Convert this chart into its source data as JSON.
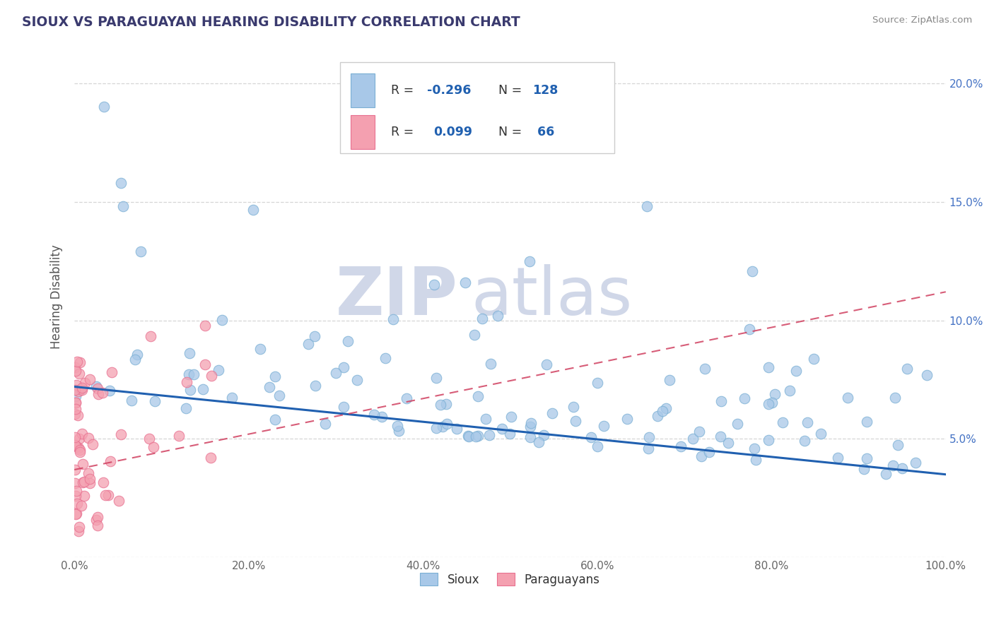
{
  "title": "SIOUX VS PARAGUAYAN HEARING DISABILITY CORRELATION CHART",
  "source_text": "Source: ZipAtlas.com",
  "ylabel": "Hearing Disability",
  "legend_r": [
    -0.296,
    0.099
  ],
  "legend_n": [
    128,
    66
  ],
  "sioux_color": "#a8c8e8",
  "sioux_edge_color": "#7aafd4",
  "paraguayan_color": "#f4a0b0",
  "paraguayan_edge_color": "#e87090",
  "sioux_line_color": "#2060b0",
  "paraguayan_line_color": "#d04060",
  "background_color": "#ffffff",
  "grid_color": "#cccccc",
  "title_color": "#3a3a6e",
  "source_color": "#888888",
  "xlim": [
    0.0,
    1.0
  ],
  "ylim": [
    0.0,
    0.22
  ],
  "x_ticks": [
    0.0,
    0.2,
    0.4,
    0.6,
    0.8,
    1.0
  ],
  "x_labels": [
    "0.0%",
    "20.0%",
    "40.0%",
    "60.0%",
    "80.0%",
    "100.0%"
  ],
  "y_ticks": [
    0.0,
    0.05,
    0.1,
    0.15,
    0.2
  ],
  "y_labels": [
    "",
    "5.0%",
    "10.0%",
    "15.0%",
    "20.0%"
  ],
  "watermark_zip": "ZIP",
  "watermark_atlas": "atlas",
  "watermark_color": "#dde4f0"
}
